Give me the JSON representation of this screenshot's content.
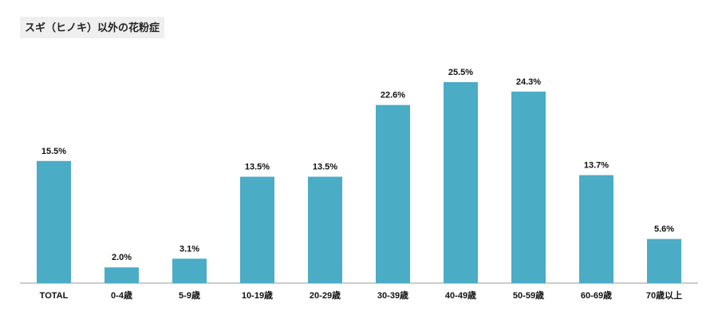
{
  "chart_data": {
    "type": "bar",
    "title": "スギ（ヒノキ）以外の花粉症",
    "categories": [
      "TOTAL",
      "0-4歳",
      "5-9歳",
      "10-19歳",
      "20-29歳",
      "30-39歳",
      "40-49歳",
      "50-59歳",
      "60-69歳",
      "70歳以上"
    ],
    "values": [
      15.5,
      2.0,
      3.1,
      13.5,
      13.5,
      22.6,
      25.5,
      24.3,
      13.7,
      5.6
    ],
    "value_labels": [
      "15.5%",
      "2.0%",
      "3.1%",
      "13.5%",
      "13.5%",
      "22.6%",
      "25.5%",
      "24.3%",
      "13.7%",
      "5.6%"
    ],
    "color": "#4bacc6"
  }
}
